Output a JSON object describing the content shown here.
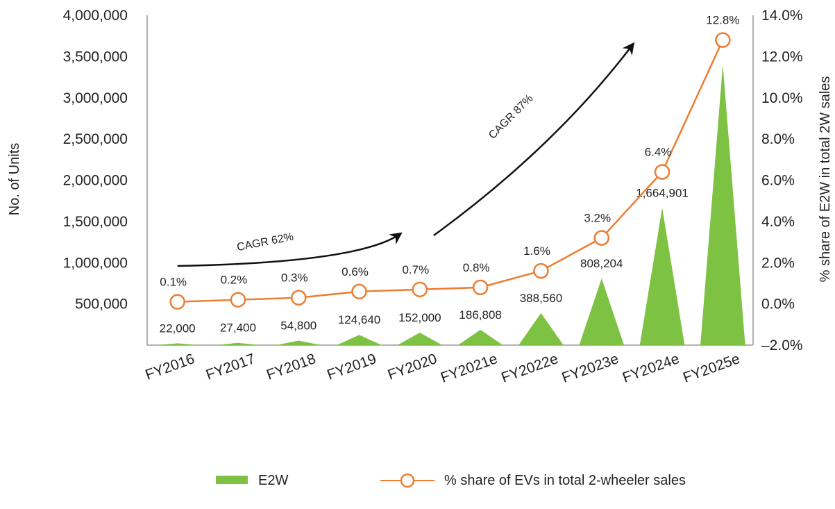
{
  "chart_data": {
    "type": "bar",
    "categories": [
      "FY2016",
      "FY2017",
      "FY2018",
      "FY2019",
      "FY2020",
      "FY2021e",
      "FY2022e",
      "FY2023e",
      "FY2024e",
      "FY2025e"
    ],
    "series": [
      {
        "name": "E2W",
        "kind": "triangle-bar",
        "axis": "left",
        "color": "#7dc242",
        "values": [
          22000,
          27400,
          54800,
          124640,
          152000,
          186808,
          388560,
          808204,
          1664901,
          3400000
        ],
        "labels": [
          "22,000",
          "27,400",
          "54,800",
          "124,640",
          "152,000",
          "186,808",
          "388,560",
          "808,204",
          "1,664,901",
          ""
        ]
      },
      {
        "name": "% share of EVs in total 2-wheeler sales",
        "kind": "line",
        "axis": "right",
        "color": "#ed7d31",
        "values": [
          0.1,
          0.2,
          0.3,
          0.6,
          0.7,
          0.8,
          1.6,
          3.2,
          6.4,
          12.8
        ],
        "labels": [
          "0.1%",
          "0.2%",
          "0.3%",
          "0.6%",
          "0.7%",
          "0.8%",
          "1.6%",
          "3.2%",
          "6.4%",
          "12.8%"
        ]
      }
    ],
    "ylabel": "No. of Units",
    "y2label": "% share of E2W in total 2W sales",
    "yticks": [
      "500,000",
      "1,000,000",
      "1,500,000",
      "2,000,000",
      "2,500,000",
      "3,000,000",
      "3,500,000",
      "4,000,000"
    ],
    "ytick_values": [
      500000,
      1000000,
      1500000,
      2000000,
      2500000,
      3000000,
      3500000,
      4000000
    ],
    "y2ticks": [
      "–2.0%",
      "0.0%",
      "2.0%",
      "4.0%",
      "6.0%",
      "8.0%",
      "10.0%",
      "12.0%",
      "14.0%"
    ],
    "y2tick_values": [
      -2,
      0,
      2,
      4,
      6,
      8,
      10,
      12,
      14
    ],
    "ylim": [
      0,
      4000000
    ],
    "y2lim": [
      -2,
      14
    ],
    "annotations": [
      {
        "text": "CAGR 62%",
        "span": [
          "FY2016",
          "FY2020"
        ]
      },
      {
        "text": "CAGR 87%",
        "span": [
          "FY2020",
          "FY2025e"
        ]
      }
    ],
    "legend_position": "bottom",
    "grid": false
  }
}
